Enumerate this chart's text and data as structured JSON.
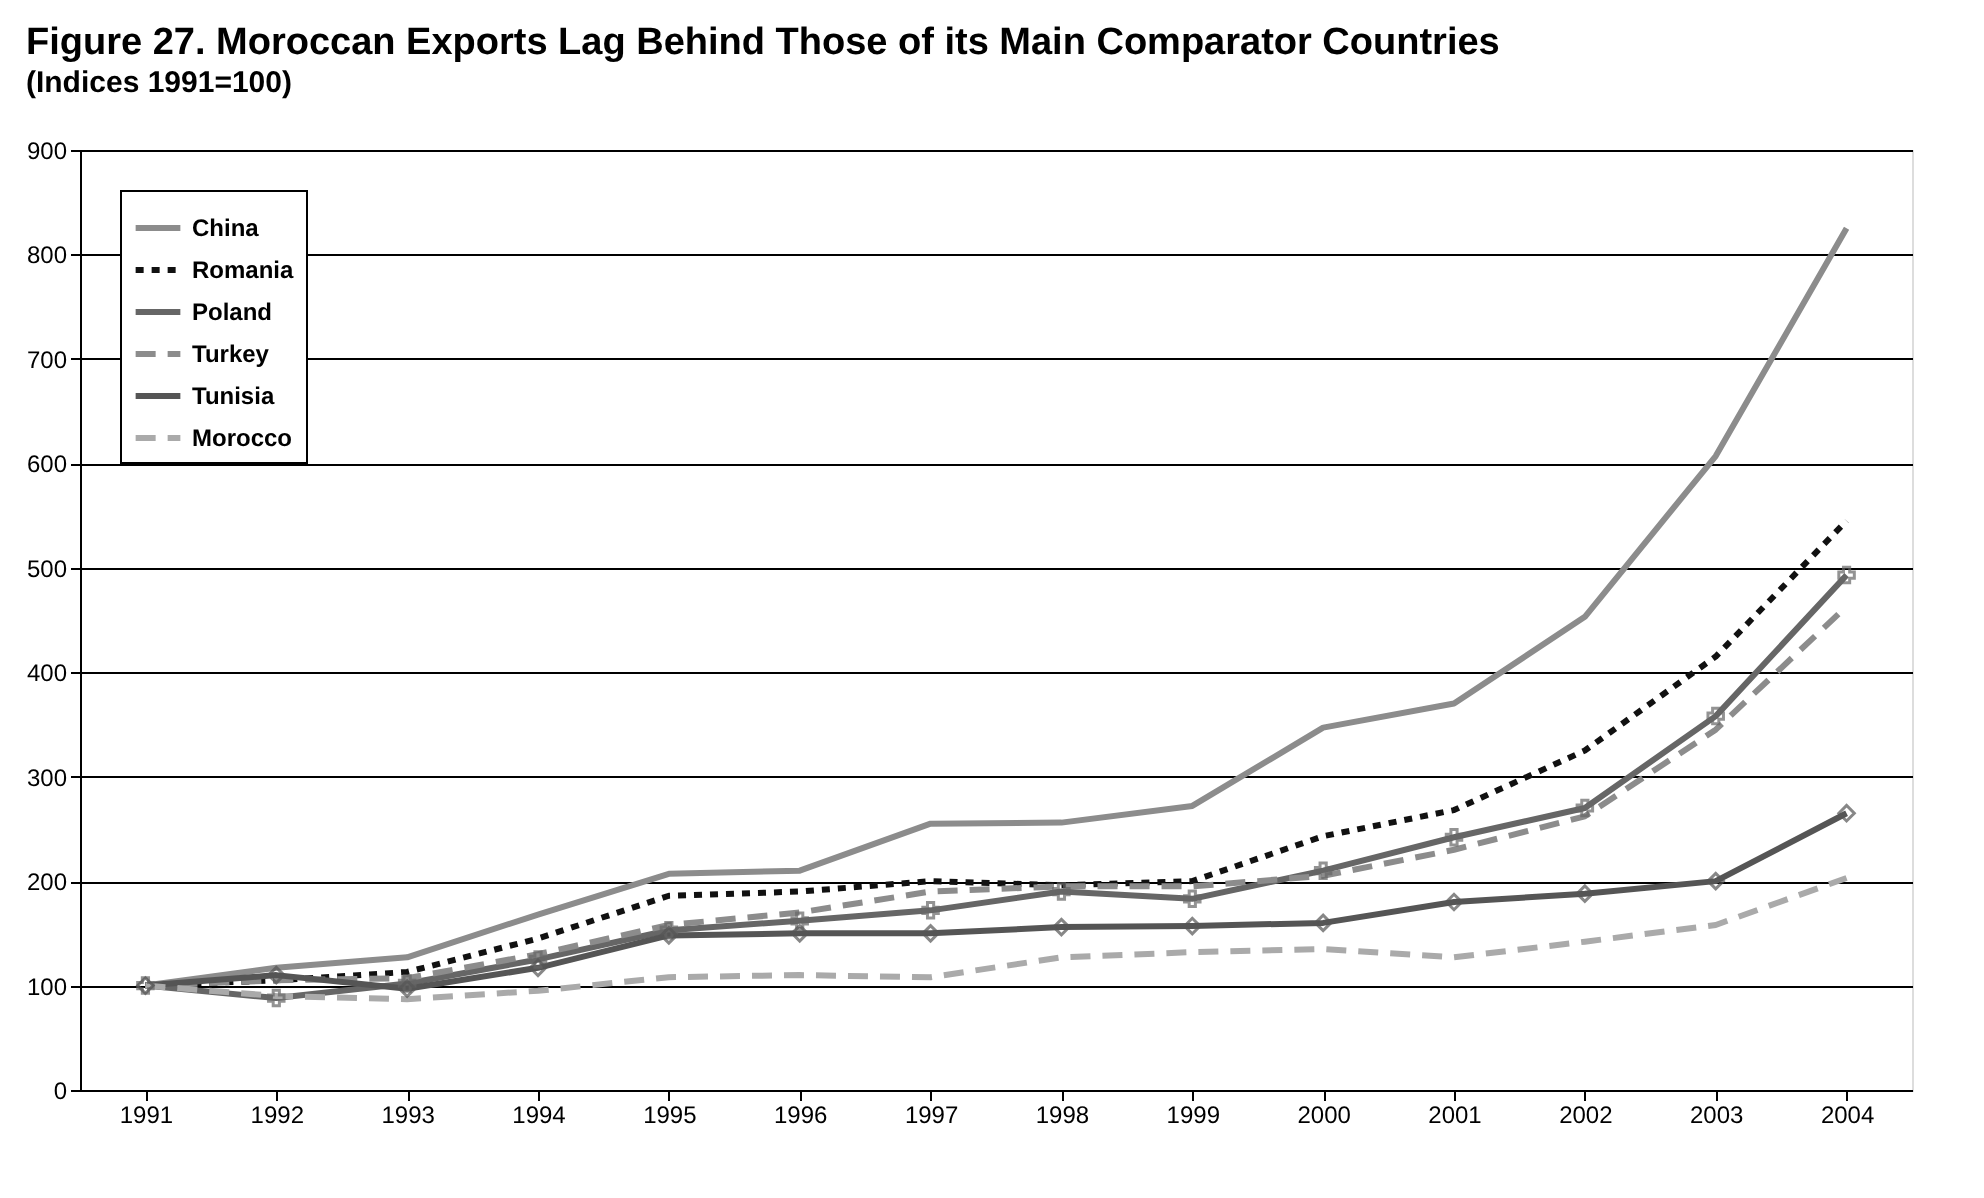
{
  "chart_data": {
    "type": "line",
    "title": "Figure 27.  Moroccan Exports Lag Behind Those of its Main Comparator Countries",
    "subtitle": "(Indices 1991=100)",
    "categories": [
      "1991",
      "1992",
      "1993",
      "1994",
      "1995",
      "1996",
      "1997",
      "1998",
      "1999",
      "2000",
      "2001",
      "2002",
      "2003",
      "2004"
    ],
    "series": [
      {
        "name": "China",
        "color": "#8c8c8c",
        "line_style": "solid",
        "marker": "none",
        "values": [
          100,
          117,
          127,
          168,
          207,
          210,
          255,
          256,
          272,
          347,
          370,
          453,
          607,
          825
        ]
      },
      {
        "name": "Romania",
        "color": "#111111",
        "line_style": "dotted",
        "marker": "none",
        "values": [
          100,
          105,
          113,
          145,
          186,
          190,
          200,
          196,
          200,
          243,
          268,
          325,
          415,
          545
        ]
      },
      {
        "name": "Poland",
        "color": "#666666",
        "line_style": "solid",
        "marker": "cross",
        "values": [
          100,
          88,
          102,
          125,
          153,
          162,
          172,
          190,
          183,
          210,
          242,
          270,
          358,
          493
        ]
      },
      {
        "name": "Turkey",
        "color": "#8c8c8c",
        "line_style": "dashed",
        "marker": "none",
        "values": [
          100,
          105,
          107,
          130,
          158,
          170,
          190,
          195,
          195,
          205,
          230,
          262,
          345,
          463
        ]
      },
      {
        "name": "Tunisia",
        "color": "#555555",
        "line_style": "solid",
        "marker": "diamond",
        "values": [
          100,
          110,
          97,
          117,
          148,
          150,
          150,
          156,
          157,
          160,
          180,
          188,
          200,
          265
        ]
      },
      {
        "name": "Morocco",
        "color": "#aaaaaa",
        "line_style": "dashed",
        "marker": "none",
        "values": [
          100,
          90,
          87,
          95,
          108,
          110,
          108,
          127,
          132,
          135,
          127,
          142,
          158,
          203
        ]
      }
    ],
    "ylim": [
      0,
      900
    ],
    "yticks": [
      0,
      100,
      200,
      300,
      400,
      500,
      600,
      700,
      800,
      900
    ],
    "grid": "y",
    "legend": "top left"
  }
}
